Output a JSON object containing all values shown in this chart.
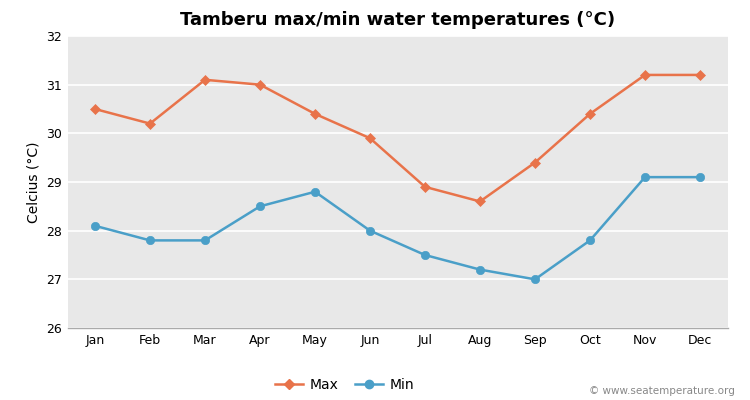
{
  "title": "Tamberu max/min water temperatures (°C)",
  "ylabel": "Celcius (°C)",
  "months": [
    "Jan",
    "Feb",
    "Mar",
    "Apr",
    "May",
    "Jun",
    "Jul",
    "Aug",
    "Sep",
    "Oct",
    "Nov",
    "Dec"
  ],
  "max_values": [
    30.5,
    30.2,
    31.1,
    31.0,
    30.4,
    29.9,
    28.9,
    28.6,
    29.4,
    30.4,
    31.2,
    31.2
  ],
  "min_values": [
    28.1,
    27.8,
    27.8,
    28.5,
    28.8,
    28.0,
    27.5,
    27.2,
    27.0,
    27.8,
    29.1,
    29.1
  ],
  "max_color": "#e8734a",
  "min_color": "#4a9fc8",
  "fig_bg_color": "#ffffff",
  "plot_bg_color": "#e8e8e8",
  "grid_color": "#ffffff",
  "ylim": [
    26,
    32
  ],
  "yticks": [
    26,
    27,
    28,
    29,
    30,
    31,
    32
  ],
  "legend_labels": [
    "Max",
    "Min"
  ],
  "watermark": "© www.seatemperature.org",
  "title_fontsize": 13,
  "axis_label_fontsize": 10,
  "tick_fontsize": 9,
  "legend_fontsize": 10
}
